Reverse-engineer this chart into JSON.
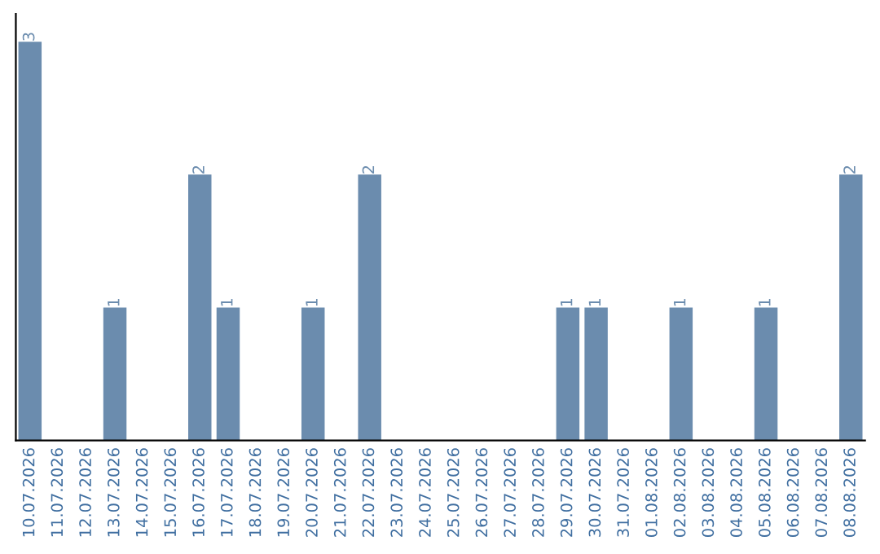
{
  "chart_data": {
    "type": "bar",
    "categories": [
      "10.07.2026",
      "11.07.2026",
      "12.07.2026",
      "13.07.2026",
      "14.07.2026",
      "15.07.2026",
      "16.07.2026",
      "17.07.2026",
      "18.07.2026",
      "19.07.2026",
      "20.07.2026",
      "21.07.2026",
      "22.07.2026",
      "23.07.2026",
      "24.07.2026",
      "25.07.2026",
      "26.07.2026",
      "27.07.2026",
      "28.07.2026",
      "29.07.2026",
      "30.07.2026",
      "31.07.2026",
      "01.08.2026",
      "02.08.2026",
      "03.08.2026",
      "04.08.2026",
      "05.08.2026",
      "06.08.2026",
      "07.08.2026",
      "08.08.2026"
    ],
    "values": [
      3,
      0,
      0,
      1,
      0,
      0,
      2,
      1,
      0,
      0,
      1,
      0,
      2,
      0,
      0,
      0,
      0,
      0,
      0,
      1,
      1,
      0,
      0,
      1,
      0,
      0,
      1,
      0,
      0,
      2
    ],
    "value_labels": [
      "3",
      null,
      null,
      "1",
      null,
      null,
      "2",
      "1",
      null,
      null,
      "1",
      null,
      "2",
      null,
      null,
      null,
      null,
      null,
      null,
      "1",
      "1",
      null,
      null,
      "1",
      null,
      null,
      "1",
      null,
      null,
      "2"
    ],
    "color": "#6b8cae",
    "grid": false,
    "legend": false
  }
}
